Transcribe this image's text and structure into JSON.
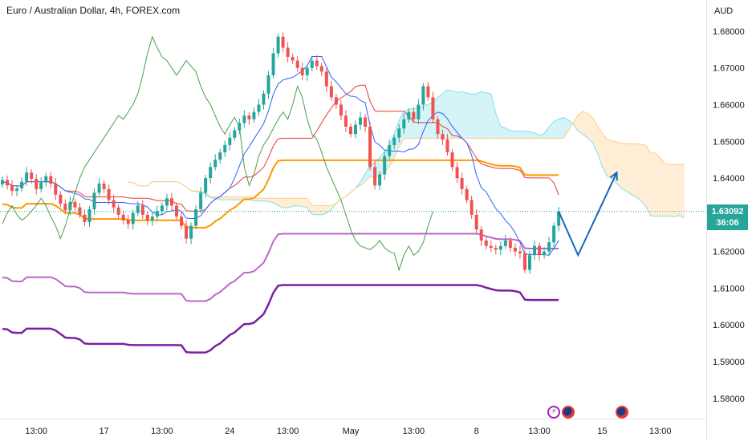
{
  "header": {
    "title": "Euro / Australian Dollar, 4h, FOREX.com",
    "currency": "AUD"
  },
  "price_tag": {
    "price": "1.63092",
    "countdown": "36:06",
    "color": "#26a69a"
  },
  "colors": {
    "bull": "#26a69a",
    "bear": "#ef5350",
    "tenkan": "#2962ff",
    "kijun": "#e53935",
    "lagging": "#43a047",
    "cloud_bull": "#b2ebf2",
    "cloud_bear": "#ffe0b2",
    "orange": "#ff9800",
    "violet_light": "#ba68c8",
    "violet_dark": "#7b1fa2",
    "projection": "#1565c0"
  },
  "chart_data": {
    "type": "candlestick",
    "symbol": "EURAUD",
    "timeframe": "4h",
    "y_ticks": [
      "1.68000",
      "1.67000",
      "1.66000",
      "1.65000",
      "1.64000",
      "1.63000",
      "1.62000",
      "1.61000",
      "1.60000",
      "1.59000",
      "1.58000"
    ],
    "ylim": [
      1.5745,
      1.6885
    ],
    "x_ticks": [
      "13:00",
      "17",
      "13:00",
      "24",
      "13:00",
      "May",
      "13:00",
      "8",
      "13:00",
      "15",
      "13:00"
    ],
    "x_tick_index": [
      7,
      21,
      33,
      47,
      59,
      72,
      85,
      98,
      111,
      124,
      136
    ],
    "xlim": [
      0,
      146
    ],
    "last_price": 1.63092,
    "candles_close": [
      1.6395,
      1.638,
      1.6365,
      1.6372,
      1.639,
      1.6415,
      1.6398,
      1.637,
      1.6388,
      1.6405,
      1.6385,
      1.6355,
      1.633,
      1.6312,
      1.6335,
      1.632,
      1.63,
      1.628,
      1.6315,
      1.636,
      1.6385,
      1.637,
      1.634,
      1.632,
      1.63,
      1.6285,
      1.6275,
      1.6305,
      1.6325,
      1.63,
      1.6285,
      1.6295,
      1.631,
      1.6325,
      1.6345,
      1.6325,
      1.6295,
      1.627,
      1.6235,
      1.627,
      1.6315,
      1.636,
      1.64,
      1.643,
      1.645,
      1.647,
      1.649,
      1.651,
      1.653,
      1.655,
      1.657,
      1.656,
      1.658,
      1.66,
      1.663,
      1.668,
      1.674,
      1.6785,
      1.6755,
      1.673,
      1.672,
      1.67,
      1.668,
      1.67,
      1.672,
      1.6705,
      1.669,
      1.665,
      1.662,
      1.66,
      1.657,
      1.654,
      1.652,
      1.6545,
      1.6565,
      1.654,
      1.643,
      1.638,
      1.641,
      1.646,
      1.649,
      1.651,
      1.6535,
      1.656,
      1.658,
      1.656,
      1.66,
      1.665,
      1.662,
      1.656,
      1.652,
      1.6505,
      1.647,
      1.643,
      1.64,
      1.637,
      1.634,
      1.63,
      1.626,
      1.623,
      1.6215,
      1.621,
      1.6205,
      1.6215,
      1.623,
      1.621,
      1.62,
      1.6195,
      1.615,
      1.619,
      1.6215,
      1.619,
      1.62,
      1.6225,
      1.627,
      1.6309
    ],
    "indicators": [
      "Ichimoku cloud",
      "Tenkan-sen",
      "Kijun-sen",
      "Chikou span",
      "Donchian midlines"
    ],
    "projection": [
      [
        115,
        1.6309
      ],
      [
        119,
        1.619
      ],
      [
        127,
        1.6415
      ]
    ],
    "events": [
      {
        "index": 114,
        "icon": "lightning-icon"
      },
      {
        "index": 117,
        "icon": "flag-au-icon"
      },
      {
        "index": 128,
        "icon": "flag-au-icon"
      }
    ]
  }
}
